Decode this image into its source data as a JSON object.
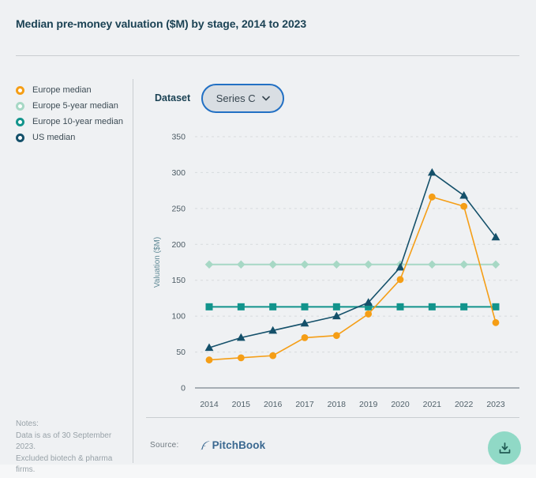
{
  "header": {
    "title": "Median pre-money valuation ($M) by stage, 2014 to 2023"
  },
  "legend": {
    "items": [
      {
        "label": "Europe median",
        "color": "#F59E16"
      },
      {
        "label": "Europe 5-year median",
        "color": "#A7D8C5"
      },
      {
        "label": "Europe 10-year median",
        "color": "#12948C"
      },
      {
        "label": "US median",
        "color": "#14506A"
      }
    ]
  },
  "controls": {
    "dataset_label": "Dataset",
    "dataset_value": "Series C"
  },
  "chart_data": {
    "type": "line",
    "x": [
      2014,
      2015,
      2016,
      2017,
      2018,
      2019,
      2020,
      2021,
      2022,
      2023
    ],
    "series": [
      {
        "name": "Europe median",
        "color": "#F59E16",
        "marker": "circle",
        "values": [
          39,
          42,
          45,
          70,
          73,
          103,
          151,
          266,
          253,
          91
        ]
      },
      {
        "name": "Europe 5-year median",
        "color": "#A7D8C5",
        "marker": "diamond",
        "values": [
          172,
          172,
          172,
          172,
          172,
          172,
          172,
          172,
          172,
          172
        ]
      },
      {
        "name": "Europe 10-year median",
        "color": "#12948C",
        "marker": "square",
        "values": [
          113,
          113,
          113,
          113,
          113,
          113,
          113,
          113,
          113,
          113
        ]
      },
      {
        "name": "US median",
        "color": "#14506A",
        "marker": "triangle",
        "values": [
          56,
          70,
          80,
          90,
          100,
          119,
          168,
          300,
          268,
          210
        ]
      }
    ],
    "title": "Median pre-money valuation ($M) by stage, 2014 to 2023",
    "xlabel": "",
    "ylabel": "Valuation ($M)",
    "ylim": [
      0,
      350
    ],
    "yticks": [
      0,
      50,
      100,
      150,
      200,
      250,
      300,
      350
    ],
    "grid": "horizontal-dashed",
    "legend_position": "left"
  },
  "notes": {
    "lines": [
      "Notes:",
      "Data is as of 30 September 2023.",
      "Excluded biotech & pharma",
      "firms."
    ]
  },
  "source": {
    "label": "Source:",
    "brand": "PitchBook"
  }
}
